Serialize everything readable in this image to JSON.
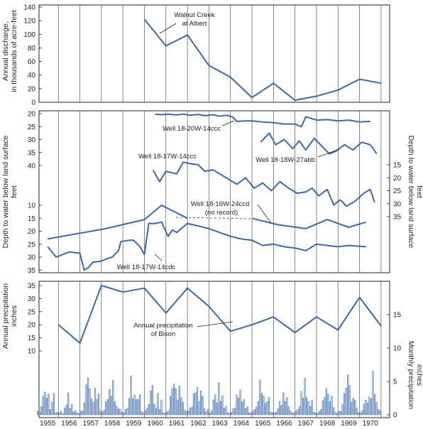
{
  "colors": {
    "line": "#3d68a8",
    "bar_fill": "#b9cde6",
    "bar_stroke": "#3d68a8",
    "axis": "#222222",
    "grid": "#555555"
  },
  "chart_data": [
    {
      "type": "line",
      "panel": "discharge",
      "ylabel": "Annual discharge, in thousands of acre-feet",
      "ylim": [
        0,
        140
      ],
      "yticks": [
        "140",
        "120",
        "100",
        "80",
        "60",
        "40",
        "20",
        "0"
      ],
      "x_range": [
        1954.6,
        1970.9
      ],
      "grid": "vertical year lines",
      "series": [
        {
          "name": "Walnut Creek at Albert",
          "x": [
            1959.5,
            1960.5,
            1961.5,
            1962.5,
            1963.5,
            1964.5,
            1965.5,
            1966.5,
            1967.5,
            1968.5,
            1969.5,
            1970.5
          ],
          "y": [
            122,
            83,
            99,
            54,
            37,
            7,
            28,
            3,
            9,
            18,
            34,
            28
          ]
        }
      ],
      "annotations": [
        {
          "text": "Walnut Creek",
          "text2": "at Albert"
        }
      ]
    },
    {
      "type": "line",
      "panel": "water-levels",
      "ylabel": "Depth to water below land surface feet",
      "ylabel_right": "Depth to water below land surface feet",
      "left_ticks_top": [
        "20",
        "25",
        "30",
        "35",
        "40"
      ],
      "left_ticks_bottom": [
        "10",
        "15",
        "20",
        "25",
        "30",
        "35"
      ],
      "right_ticks": [
        "15",
        "20",
        "25",
        "30",
        "35"
      ],
      "x_range": [
        1954.6,
        1970.9
      ],
      "series": [
        {
          "name": "Well 18-20W-14ccc",
          "x": [
            1960.0,
            1960.3,
            1960.6,
            1961.0,
            1961.3,
            1961.6,
            1962.0,
            1962.3,
            1962.7,
            1963.0,
            1963.3,
            1963.6,
            1963.8,
            1964.2,
            1964.5,
            1965.0,
            1965.5,
            1966.0,
            1966.5,
            1966.8,
            1967.0,
            1967.5,
            1968.0,
            1968.5,
            1969.0,
            1969.5,
            1970.0
          ],
          "y": [
            20.2,
            20.4,
            20.2,
            20.5,
            20.2,
            20.6,
            20.3,
            20.8,
            20.4,
            21.0,
            20.6,
            21.3,
            23.0,
            22.8,
            22.8,
            23.2,
            23.5,
            24.0,
            24.0,
            25.0,
            21.2,
            22.5,
            22.3,
            22.8,
            22.5,
            23.2,
            23.0
          ]
        },
        {
          "name": "Well 18-18W-27abb",
          "x": [
            1964.9,
            1965.3,
            1965.6,
            1966.0,
            1966.4,
            1966.7,
            1967.0,
            1967.4,
            1967.8,
            1968.1,
            1968.4,
            1968.8,
            1969.2,
            1969.6,
            1970.0,
            1970.3
          ],
          "y": [
            31.0,
            27.5,
            32.0,
            30.0,
            33.5,
            30.5,
            34.0,
            29.5,
            33.0,
            35.5,
            34.5,
            32.0,
            34.0,
            31.0,
            32.0,
            35.5
          ]
        },
        {
          "name": "Well 18-17W-14ccc",
          "x": [
            1959.9,
            1960.2,
            1960.5,
            1961.0,
            1961.3,
            1961.6,
            1962.0,
            1962.3,
            1962.7,
            1963.0,
            1963.4,
            1963.8,
            1964.2,
            1964.6,
            1965.0,
            1965.4,
            1965.8,
            1966.2,
            1966.6,
            1967.0,
            1967.3,
            1967.6,
            1968.0,
            1968.3,
            1968.6,
            1968.9,
            1969.3,
            1969.7,
            1970.0,
            1970.2
          ],
          "y": [
            17.0,
            21.5,
            17.5,
            18.5,
            14.0,
            14.5,
            15.0,
            17.5,
            17.0,
            18.5,
            20.5,
            22.5,
            20.0,
            24.0,
            22.0,
            25.0,
            21.5,
            24.0,
            26.0,
            25.5,
            24.0,
            27.0,
            24.5,
            30.5,
            28.5,
            31.0,
            29.0,
            26.0,
            24.5,
            29.5
          ]
        },
        {
          "name": "Well 18-16W-24ccd",
          "x": [
            1955.0,
            1957.7,
            1959.5,
            1960.3,
            1961.5,
            1964.5,
            1965.7,
            1967.0,
            1968.0,
            1969.0,
            1969.8
          ],
          "y": [
            23.0,
            19.0,
            15.5,
            10.0,
            15.0,
            15.0,
            17.5,
            19.0,
            15.5,
            18.5,
            16.5
          ]
        },
        {
          "name": "Well 18-17W-14cdc",
          "x": [
            1955.0,
            1955.4,
            1956.0,
            1956.5,
            1956.7,
            1956.9,
            1957.1,
            1957.5,
            1957.8,
            1958.0,
            1958.3,
            1958.4,
            1958.8,
            1959.0,
            1959.3,
            1959.5,
            1959.7,
            1960.0,
            1960.3,
            1960.6,
            1960.8,
            1961.0,
            1961.5,
            1962.0,
            1962.5,
            1963.0,
            1963.5,
            1964.0,
            1964.5,
            1965.0,
            1965.5,
            1966.0,
            1966.5,
            1967.0,
            1967.5,
            1968.0,
            1968.5,
            1969.0,
            1969.8
          ],
          "y": [
            26.0,
            30.0,
            28.0,
            28.5,
            35.0,
            34.0,
            32.0,
            31.5,
            30.5,
            30.0,
            27.5,
            24.0,
            23.5,
            23.5,
            26.0,
            29.0,
            17.0,
            17.0,
            16.5,
            22.0,
            19.5,
            20.5,
            17.0,
            18.0,
            19.0,
            20.5,
            22.0,
            23.0,
            23.5,
            25.5,
            25.0,
            26.0,
            26.5,
            27.5,
            25.0,
            25.5,
            26.0,
            25.5,
            26.0
          ]
        }
      ],
      "annotations": [
        {
          "text": "Well 18-20W-14ccc"
        },
        {
          "text": "Well 18-17W-14ccc"
        },
        {
          "text": "Well 18-18W-27abb"
        },
        {
          "text": "Well 18-16W-24ccd"
        },
        {
          "text": "(no record)"
        },
        {
          "text": "Well 18-17W-14cdc"
        }
      ]
    },
    {
      "type": "line",
      "panel": "precipitation",
      "ylabel": "Annual precipitation inches",
      "ylabel_right": "Monthly precipitation inches",
      "ylim_annual": [
        10,
        35
      ],
      "yticks_annual": [
        "35",
        "30",
        "25",
        "20",
        "15",
        "10"
      ],
      "ylim_monthly": [
        0,
        15
      ],
      "yticks_monthly": [
        "15",
        "10",
        "5",
        "0"
      ],
      "x_range": [
        1954.6,
        1970.9
      ],
      "categories": [
        "1955",
        "1956",
        "1957",
        "1958",
        "1959",
        "1960",
        "1961",
        "1962",
        "1963",
        "1964",
        "1965",
        "1966",
        "1967",
        "1968",
        "1969",
        "1970"
      ],
      "series": [
        {
          "name": "Annual precipitation of Bison",
          "x": [
            1955.5,
            1956.5,
            1957.5,
            1958.5,
            1959.5,
            1960.5,
            1961.5,
            1962.5,
            1963.5,
            1964.5,
            1965.5,
            1966.5,
            1967.5,
            1968.5,
            1969.5,
            1970.5
          ],
          "y": [
            20,
            13,
            35,
            32.5,
            34,
            24.5,
            34,
            27,
            17.5,
            20,
            23,
            17,
            23,
            18,
            30.5,
            19.5
          ]
        },
        {
          "name": "Monthly precipitation",
          "type": "bar",
          "values_by_year": {
            "1955": [
              0.5,
              0.4,
              1.2,
              2.8,
              3.4,
              2.5,
              3.1,
              0.8,
              1.9,
              3.2,
              0.3,
              0.4
            ],
            "1956": [
              0.3,
              0.5,
              0.2,
              1.0,
              1.4,
              3.3,
              0.9,
              1.6,
              0.4,
              0.6,
              0.3,
              0.2
            ],
            "1957": [
              0.5,
              0.6,
              1.8,
              4.5,
              5.5,
              3.9,
              2.4,
              1.9,
              4.0,
              2.3,
              3.1,
              0.6
            ],
            "1958": [
              0.4,
              0.7,
              2.0,
              2.3,
              3.8,
              2.8,
              5.2,
              2.0,
              1.3,
              0.9,
              0.8,
              0.4
            ],
            "1959": [
              0.3,
              0.8,
              1.0,
              2.5,
              5.8,
              2.4,
              3.0,
              2.3,
              2.3,
              3.0,
              0.5,
              0.3
            ],
            "1960": [
              0.6,
              1.0,
              1.6,
              3.6,
              4.4,
              1.6,
              1.0,
              3.2,
              0.8,
              2.2,
              0.3,
              0.2
            ],
            "1961": [
              0.4,
              0.6,
              2.8,
              3.9,
              4.6,
              3.9,
              2.2,
              4.3,
              2.6,
              1.9,
              0.7,
              0.5
            ],
            "1962": [
              0.6,
              1.0,
              1.2,
              3.2,
              3.3,
              4.1,
              2.0,
              3.6,
              2.8,
              0.9,
              0.5,
              0.8
            ],
            "1963": [
              0.3,
              0.6,
              2.2,
              3.0,
              1.8,
              4.8,
              2.0,
              2.9,
              1.0,
              1.3,
              0.3,
              0.2
            ],
            "1964": [
              0.4,
              0.9,
              1.0,
              2.9,
              2.5,
              3.7,
              1.9,
              2.3,
              0.9,
              1.2,
              0.3,
              0.3
            ],
            "1965": [
              0.5,
              0.8,
              1.2,
              2.0,
              5.2,
              3.2,
              2.8,
              1.7,
              2.0,
              2.6,
              0.4,
              0.3
            ],
            "1966": [
              0.3,
              0.4,
              0.9,
              2.0,
              1.4,
              3.3,
              2.0,
              2.6,
              1.2,
              0.6,
              0.3,
              0.3
            ],
            "1967": [
              0.5,
              0.8,
              1.2,
              3.5,
              2.5,
              5.5,
              2.6,
              2.0,
              1.3,
              2.2,
              0.4,
              0.3
            ],
            "1968": [
              0.2,
              0.5,
              0.8,
              2.1,
              2.6,
              3.9,
              3.1,
              2.0,
              2.8,
              1.1,
              0.4,
              0.2
            ],
            "1969": [
              0.5,
              0.5,
              1.6,
              3.2,
              4.0,
              6.0,
              4.4,
              1.9,
              2.5,
              2.2,
              1.0,
              0.3
            ],
            "1970": [
              0.3,
              0.6,
              1.6,
              2.2,
              1.8,
              2.7,
              2.4,
              6.5,
              3.1,
              1.9,
              0.8,
              0.6
            ]
          }
        }
      ],
      "annotations": [
        {
          "text": "Annual precipitation",
          "text2": "of Bison"
        }
      ]
    }
  ]
}
